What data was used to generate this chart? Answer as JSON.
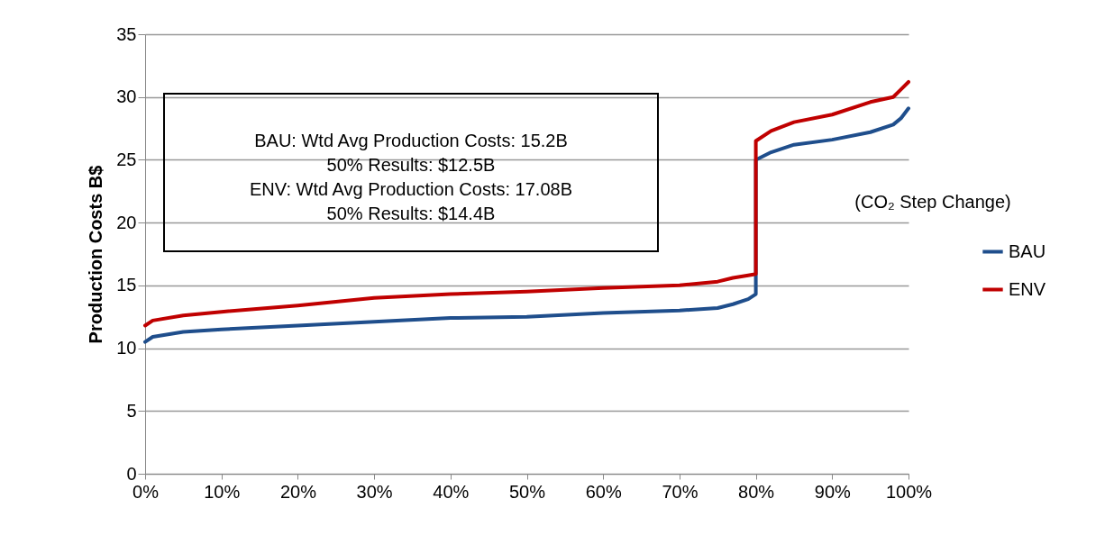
{
  "chart_data": {
    "type": "line",
    "ylabel": "Production Costs B$",
    "ylim": [
      0,
      35
    ],
    "yticks": [
      0,
      5,
      10,
      15,
      20,
      25,
      30,
      35
    ],
    "xlim": [
      0,
      100
    ],
    "xticks": [
      {
        "value": 0,
        "label": "0%"
      },
      {
        "value": 10,
        "label": "10%"
      },
      {
        "value": 20,
        "label": "20%"
      },
      {
        "value": 30,
        "label": "30%"
      },
      {
        "value": 40,
        "label": "40%"
      },
      {
        "value": 50,
        "label": "50%"
      },
      {
        "value": 60,
        "label": "60%"
      },
      {
        "value": 70,
        "label": "70%"
      },
      {
        "value": 80,
        "label": "80%"
      },
      {
        "value": 90,
        "label": "90%"
      },
      {
        "value": 100,
        "label": "100%"
      }
    ],
    "x": [
      0,
      1,
      5,
      10,
      20,
      30,
      40,
      50,
      60,
      70,
      75,
      77,
      79,
      80,
      80,
      82,
      85,
      90,
      95,
      98,
      99,
      100
    ],
    "series": [
      {
        "name": "BAU",
        "color": "#1f4e8c",
        "values": [
          10.5,
          10.9,
          11.3,
          11.5,
          11.8,
          12.1,
          12.4,
          12.5,
          12.8,
          13.0,
          13.2,
          13.5,
          13.9,
          14.3,
          25.0,
          25.6,
          26.2,
          26.6,
          27.2,
          27.8,
          28.3,
          29.1
        ]
      },
      {
        "name": "ENV",
        "color": "#c00000",
        "values": [
          11.8,
          12.2,
          12.6,
          12.9,
          13.4,
          14.0,
          14.3,
          14.5,
          14.8,
          15.0,
          15.3,
          15.6,
          15.8,
          15.9,
          26.5,
          27.3,
          28.0,
          28.6,
          29.6,
          30.0,
          30.6,
          31.2
        ]
      }
    ],
    "annotations": [
      "BAU: Wtd Avg Production Costs: 15.2B\n50% Results: $12.5B\nENV: Wtd Avg Production Costs: 17.08B\n50% Results: $14.4B",
      "(CO₂ Step Change)"
    ],
    "grid": "y",
    "legend": "right",
    "line_style": "solid"
  }
}
